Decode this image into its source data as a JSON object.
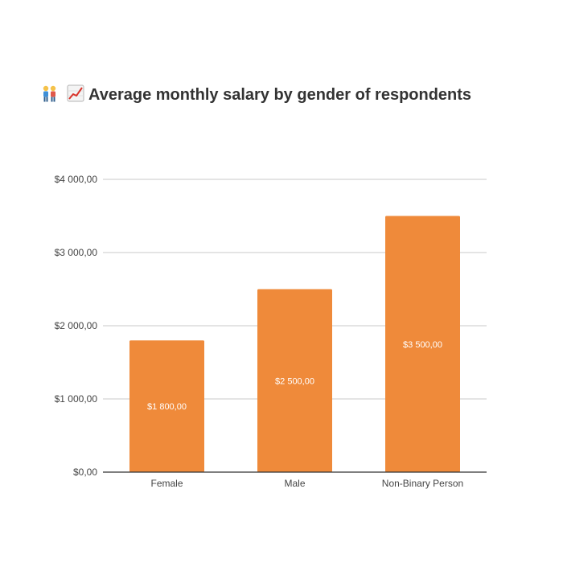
{
  "chart_data": {
    "type": "bar",
    "title": "Average monthly salary by gender of respondents",
    "title_icons": [
      "couple-emoji",
      "chart-increasing-emoji"
    ],
    "categories": [
      "Female",
      "Male",
      "Non-Binary Person"
    ],
    "values": [
      1800,
      2500,
      3500
    ],
    "value_labels": [
      "$1 800,00",
      "$2 500,00",
      "$3 500,00"
    ],
    "xlabel": "",
    "ylabel": "",
    "ylim": [
      0,
      4000
    ],
    "yticks": [
      0,
      1000,
      2000,
      3000,
      4000
    ],
    "ytick_labels": [
      "$0,00",
      "$1 000,00",
      "$2 000,00",
      "$3 000,00",
      "$4 000,00"
    ],
    "grid": true,
    "legend": "none",
    "bar_color": "#ef8a3a",
    "grid_color": "#c8c8c8",
    "axis_color": "#333333"
  }
}
